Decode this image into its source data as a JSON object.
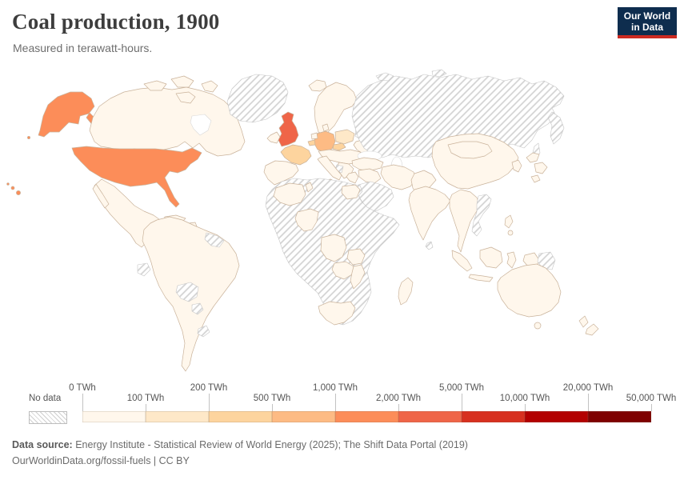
{
  "header": {
    "title": "Coal production, 1900",
    "subtitle": "Measured in terawatt-hours.",
    "logo": {
      "line1": "Our World",
      "line2": "in Data",
      "bg_color": "#0e2d4e",
      "accent_color": "#cc2a21"
    }
  },
  "legend": {
    "no_data_label": "No data",
    "unit": "TWh",
    "tick_labels": [
      "0 TWh",
      "100 TWh",
      "200 TWh",
      "500 TWh",
      "1,000 TWh",
      "2,000 TWh",
      "5,000 TWh",
      "10,000 TWh",
      "20,000 TWh",
      "50,000 TWh"
    ],
    "bin_colors": [
      "#fff7ec",
      "#fee8c8",
      "#fdd49e",
      "#fdbb84",
      "#fc8d59",
      "#ef6548",
      "#d7301f",
      "#b30000",
      "#7f0000"
    ]
  },
  "chart_data": {
    "type": "heatmap",
    "variant": "world-choropleth-map",
    "title": "Coal production, 1900",
    "unit": "terawatt-hours",
    "legend_position": "bottom",
    "bin_edges_twh": [
      0,
      100,
      200,
      500,
      1000,
      2000,
      5000,
      10000,
      20000,
      50000
    ],
    "bin_colors": [
      "#fff7ec",
      "#fee8c8",
      "#fdd49e",
      "#fdbb84",
      "#fc8d59",
      "#ef6548",
      "#d7301f",
      "#b30000",
      "#7f0000"
    ],
    "regions": [
      {
        "name": "United States",
        "bin": "1,000–2,000 TWh"
      },
      {
        "name": "United Kingdom",
        "bin": "2,000–5,000 TWh"
      },
      {
        "name": "Germany",
        "bin": "500–1,000 TWh"
      },
      {
        "name": "France",
        "bin": "200–500 TWh"
      },
      {
        "name": "Belgium",
        "bin": "200–500 TWh"
      },
      {
        "name": "Czechia",
        "bin": "200–500 TWh"
      },
      {
        "name": "Poland",
        "bin": "100–200 TWh"
      },
      {
        "name": "Canada",
        "bin": "0–100 TWh"
      },
      {
        "name": "Mexico",
        "bin": "0–100 TWh"
      },
      {
        "name": "Brazil and most of South America",
        "bin": "0–100 TWh"
      },
      {
        "name": "Spain, Italy, Scandinavia, Balkans",
        "bin": "0–100 TWh"
      },
      {
        "name": "China, Mongolia, India, Japan, Korea, Iran, Turkey",
        "bin": "0–100 TWh"
      },
      {
        "name": "Australia, New Zealand, Indonesia",
        "bin": "0–100 TWh"
      },
      {
        "name": "South Africa and southern/central Africa",
        "bin": "0–100 TWh"
      }
    ],
    "no_data_regions": [
      "Russia",
      "Central Asia",
      "Finland",
      "Baltic states",
      "Greenland",
      "Saudi Arabia",
      "Morocco",
      "Libya",
      "Sahel and Horn of Africa",
      "Angola",
      "Namibia",
      "Botswana",
      "Vietnam, Laos, Cambodia",
      "Nepal",
      "Sri Lanka",
      "Papua New Guinea",
      "Bolivia",
      "Paraguay",
      "Uruguay",
      "Ecuador",
      "Guyana",
      "Suriname"
    ]
  },
  "footer": {
    "source_label": "Data source:",
    "source_text": " Energy Institute - Statistical Review of World Energy (2025); The Shift Data Portal (2019)",
    "attribution": "OurWorldinData.org/fossil-fuels | CC BY"
  }
}
